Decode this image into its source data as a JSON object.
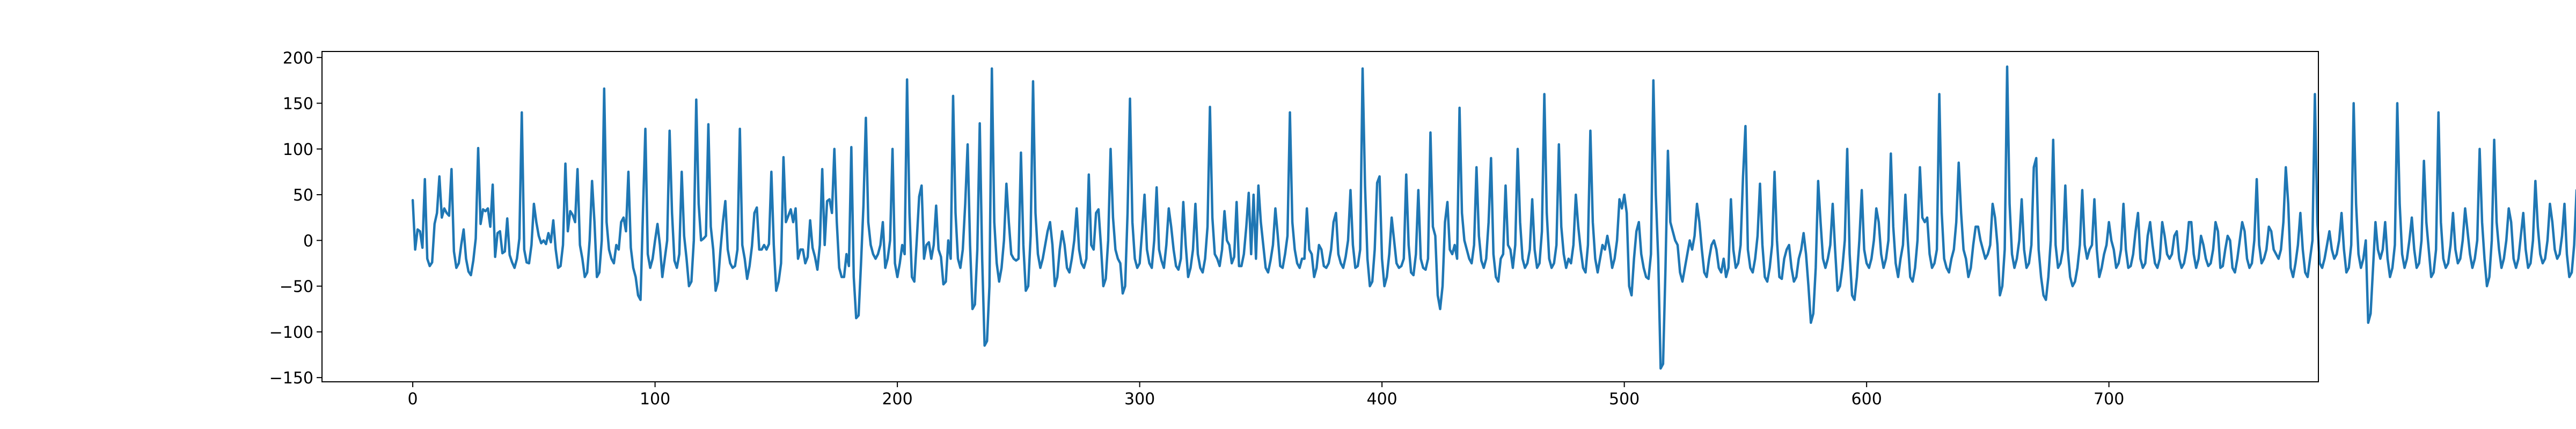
{
  "chart_data": {
    "type": "line",
    "title": "",
    "xlabel": "",
    "ylabel": "",
    "xlim": [
      -37.45,
      786.45
    ],
    "ylim": [
      -154.6,
      206.6
    ],
    "x_ticks": [
      0,
      100,
      200,
      300,
      400,
      500,
      600,
      700
    ],
    "y_ticks": [
      -150,
      -100,
      -50,
      0,
      50,
      100,
      150,
      200
    ],
    "grid": false,
    "legend": "none",
    "series_color": "#1f77b4",
    "series": [
      {
        "x_start": 0,
        "x_step": 1,
        "values": [
          44,
          -10,
          12,
          10,
          -8,
          67,
          -20,
          -28,
          -24,
          18,
          30,
          70,
          25,
          35,
          30,
          27,
          78,
          -12,
          -30,
          -25,
          -5,
          12,
          -20,
          -34,
          -38,
          -22,
          2,
          101,
          18,
          34,
          32,
          35,
          15,
          61,
          -18,
          8,
          10,
          -14,
          -12,
          24,
          -16,
          -24,
          -30,
          -20,
          2,
          140,
          -10,
          -24,
          -25,
          -5,
          40,
          20,
          5,
          -3,
          0,
          -4,
          8,
          -2,
          22,
          -10,
          -30,
          -28,
          -5,
          84,
          10,
          32,
          28,
          20,
          78,
          -5,
          -20,
          -40,
          -35,
          0,
          65,
          20,
          -40,
          -35,
          0,
          166,
          20,
          -10,
          -20,
          -25,
          -5,
          -10,
          20,
          25,
          10,
          75,
          -8,
          -30,
          -40,
          -60,
          -65,
          30,
          122,
          -15,
          -30,
          -20,
          0,
          18,
          -5,
          -40,
          -20,
          0,
          120,
          30,
          -22,
          -30,
          -15,
          75,
          5,
          -20,
          -50,
          -45,
          0,
          154,
          40,
          0,
          2,
          5,
          127,
          15,
          -10,
          -55,
          -45,
          -10,
          20,
          43,
          -10,
          -25,
          -30,
          -28,
          -10,
          122,
          -5,
          -20,
          -42,
          -28,
          -6,
          30,
          36,
          -10,
          -10,
          -5,
          -10,
          -4,
          75,
          -5,
          -55,
          -45,
          -25,
          91,
          20,
          27,
          34,
          20,
          35,
          -20,
          -10,
          -10,
          -25,
          -18,
          22,
          -8,
          -18,
          -32,
          -5,
          78,
          -5,
          43,
          45,
          30,
          100,
          20,
          -30,
          -40,
          -40,
          -15,
          -28,
          102,
          -40,
          -85,
          -82,
          -25,
          38,
          134,
          20,
          -5,
          -15,
          -20,
          -15,
          -5,
          20,
          -30,
          -20,
          0,
          100,
          -25,
          -40,
          -25,
          -5,
          -15,
          176,
          30,
          -40,
          -45,
          0,
          48,
          60,
          -20,
          -5,
          -2,
          -20,
          -5,
          38,
          -10,
          -18,
          -48,
          -45,
          0,
          -20,
          158,
          30,
          -20,
          -30,
          -10,
          40,
          105,
          -5,
          -75,
          -70,
          -10,
          128,
          -20,
          -115,
          -110,
          -50,
          188,
          20,
          -25,
          -45,
          -30,
          0,
          62,
          20,
          -15,
          -20,
          -22,
          -20,
          96,
          -5,
          -55,
          -50,
          5,
          174,
          30,
          -15,
          -30,
          -20,
          -5,
          10,
          20,
          -5,
          -50,
          -40,
          -10,
          10,
          -5,
          -30,
          -35,
          -20,
          0,
          35,
          -10,
          -25,
          -30,
          -20,
          72,
          -5,
          -10,
          30,
          34,
          -5,
          -50,
          -42,
          0,
          100,
          25,
          -10,
          -20,
          -25,
          -58,
          -50,
          30,
          155,
          20,
          -20,
          -30,
          -25,
          10,
          50,
          -10,
          -25,
          -30,
          0,
          58,
          -10,
          -22,
          -30,
          -5,
          35,
          15,
          -10,
          -28,
          -32,
          -20,
          42,
          -5,
          -40,
          -30,
          -10,
          40,
          -15,
          -30,
          -35,
          -20,
          15,
          146,
          25,
          -15,
          -20,
          -28,
          -10,
          32,
          0,
          -5,
          -25,
          -18,
          42,
          -28,
          -28,
          -15,
          15,
          52,
          -15,
          50,
          -20,
          60,
          20,
          -5,
          -30,
          -35,
          -22,
          -5,
          35,
          5,
          -28,
          -30,
          -15,
          5,
          140,
          20,
          -10,
          -25,
          -30,
          -20,
          -20,
          35,
          -10,
          -15,
          -40,
          -30,
          -5,
          -10,
          -28,
          -30,
          -25,
          -10,
          20,
          30,
          -15,
          -25,
          -30,
          -18,
          0,
          55,
          -5,
          -30,
          -28,
          -10,
          188,
          60,
          -20,
          -50,
          -45,
          -10,
          63,
          70,
          -20,
          -50,
          -40,
          -15,
          25,
          0,
          -25,
          -30,
          -28,
          -20,
          72,
          -5,
          -35,
          -38,
          -15,
          55,
          -20,
          -30,
          -32,
          -20,
          118,
          15,
          5,
          -60,
          -75,
          -50,
          20,
          42,
          -10,
          -15,
          -5,
          -20,
          145,
          30,
          0,
          -10,
          -20,
          -25,
          -5,
          80,
          5,
          -22,
          -30,
          -20,
          20,
          90,
          -15,
          -40,
          -45,
          -20,
          -15,
          60,
          -5,
          -10,
          -30,
          -5,
          100,
          20,
          -20,
          -30,
          -25,
          -10,
          45,
          -10,
          -30,
          -25,
          10,
          160,
          30,
          -20,
          -30,
          -25,
          -5,
          105,
          15,
          -15,
          -30,
          -20,
          -25,
          -5,
          50,
          15,
          -10,
          -30,
          -35,
          -5,
          120,
          20,
          -20,
          -35,
          -20,
          -5,
          -10,
          5,
          -10,
          -30,
          -20,
          0,
          45,
          35,
          50,
          30,
          -50,
          -60,
          -20,
          10,
          20,
          -15,
          -30,
          -40,
          -42,
          -15,
          175,
          50,
          -20,
          -140,
          -135,
          -30,
          98,
          20,
          10,
          0,
          -5,
          -35,
          -45,
          -30,
          -15,
          0,
          -10,
          5,
          40,
          20,
          -10,
          -35,
          -40,
          -20,
          -5,
          0,
          -10,
          -30,
          -35,
          -20,
          -40,
          -30,
          45,
          -10,
          -30,
          -25,
          -5,
          70,
          125,
          -10,
          -30,
          -35,
          -20,
          5,
          62,
          -5,
          -40,
          -45,
          -30,
          -5,
          75,
          0,
          -40,
          -42,
          -20,
          -10,
          -5,
          -30,
          -45,
          -40,
          -20,
          -10,
          8,
          -15,
          -50,
          -90,
          -80,
          -30,
          65,
          20,
          -20,
          -30,
          -20,
          -5,
          40,
          -10,
          -55,
          -50,
          -30,
          0,
          100,
          -15,
          -60,
          -65,
          -40,
          0,
          55,
          -10,
          -25,
          -30,
          -20,
          0,
          35,
          20,
          -15,
          -30,
          -20,
          0,
          95,
          15,
          -25,
          -40,
          -20,
          -5,
          50,
          0,
          -40,
          -45,
          -30,
          0,
          80,
          25,
          20,
          25,
          -15,
          -30,
          -25,
          -10,
          160,
          30,
          -20,
          -30,
          -35,
          -20,
          -10,
          20,
          85,
          30,
          -10,
          -20,
          -40,
          -30,
          -5,
          15,
          15,
          0,
          -10,
          -20,
          -15,
          -5,
          40,
          25,
          -5,
          -60,
          -50,
          -10,
          190,
          40,
          -15,
          -30,
          -20,
          0,
          45,
          -10,
          -30,
          -25,
          -5,
          80,
          90,
          -10,
          -40,
          -60,
          -65,
          -40,
          0,
          110,
          -5,
          -30,
          -25,
          -10,
          60,
          -10,
          -40,
          -50,
          -45,
          -30,
          -5,
          55,
          -5,
          -20,
          -10,
          -5,
          45,
          -10,
          -40,
          -30,
          -15,
          -5,
          20,
          0,
          -10,
          -30,
          -25,
          -10,
          40,
          -10,
          -30,
          -28,
          -15,
          10,
          30,
          -20,
          -30,
          -25,
          5,
          20,
          -5,
          -25,
          -30,
          -20,
          20,
          5,
          -15,
          -20,
          -15,
          5,
          10,
          -20,
          -30,
          -25,
          -10,
          20,
          20,
          -15,
          -30,
          -20,
          5,
          -5,
          -20,
          -28,
          -25,
          -10,
          20,
          10,
          -30,
          -28,
          -10,
          5,
          0,
          -30,
          -35,
          -20,
          0,
          20,
          10,
          -20,
          -30,
          -25,
          0,
          67,
          -5,
          -25,
          -20,
          -10,
          15,
          10,
          -10,
          -15,
          -20,
          -10,
          20,
          80,
          40,
          -30,
          -40,
          -25,
          -5,
          30,
          -10,
          -35,
          -40,
          -20,
          0,
          160,
          20,
          -25,
          -30,
          -20,
          -5,
          10,
          -10,
          -20,
          -15,
          0,
          30,
          -10,
          -35,
          -30,
          -5,
          150,
          40,
          -15,
          -30,
          -20,
          0,
          -90,
          -80,
          -30,
          20,
          -10,
          -20,
          -10,
          20,
          -20,
          -40,
          -30,
          -5,
          150,
          40,
          -15,
          -30,
          -20,
          0,
          25,
          -10,
          -30,
          -25,
          0,
          87,
          20,
          -10,
          -40,
          -35,
          -10,
          140,
          20,
          -20,
          -30,
          -25,
          -5,
          30,
          -10,
          -25,
          -20,
          0,
          35,
          10,
          -15,
          -30,
          -20,
          0,
          100,
          20,
          -20,
          -50,
          -40,
          0,
          110,
          20,
          -10,
          -30,
          -20,
          0,
          35,
          20,
          -20,
          -30,
          -20,
          5,
          30,
          -10,
          -30,
          -25,
          0,
          65,
          15,
          -15,
          -25,
          -20,
          0,
          40,
          20,
          -10,
          -20,
          -15,
          5,
          40,
          -15,
          -40,
          -35,
          -5,
          55,
          0,
          -25,
          -20,
          5,
          15,
          -10,
          -30,
          -25,
          5,
          68,
          10,
          -20,
          -30,
          -20,
          10,
          75,
          -20,
          -55,
          -40,
          0,
          172,
          20,
          -10,
          -25,
          -20,
          0,
          35,
          -10,
          -30,
          -25,
          0,
          55,
          -10,
          -30,
          -40,
          -20,
          0,
          35,
          -10,
          -25,
          -30,
          -20,
          15,
          30,
          -15,
          -30,
          -25,
          0,
          60,
          -10,
          -25,
          -20,
          0,
          38,
          -10,
          -20,
          -30,
          -20,
          0,
          30,
          -5,
          -40,
          -25,
          10,
          20,
          -10,
          -30,
          -40,
          -20,
          0,
          85,
          20,
          -10,
          -20,
          -15,
          0,
          30,
          5,
          -15,
          -25,
          -20,
          5,
          155,
          20,
          -5,
          -45,
          -40,
          -10,
          32,
          15,
          -15,
          -30,
          -25,
          0,
          40,
          -10,
          -55,
          -50,
          -10,
          45,
          -10,
          -25,
          -20,
          0,
          30,
          20,
          -5,
          -25,
          -30,
          -20,
          5,
          28,
          -15,
          -20,
          -5,
          40,
          20,
          -20,
          -30,
          -15,
          0,
          35,
          -5,
          -25,
          -20,
          0,
          40,
          -10,
          -20,
          -35,
          -40,
          -20,
          12,
          40,
          10,
          -20,
          -30,
          -15,
          100,
          20,
          -20,
          -30,
          -20,
          0,
          36,
          -10,
          -30,
          -25,
          5,
          147,
          30,
          -50,
          -105,
          -80,
          -20,
          25,
          -10,
          -35,
          -30,
          0,
          36,
          10,
          -10,
          -20,
          -25,
          -10,
          140,
          20,
          -10,
          -20,
          -10,
          10,
          20,
          -20,
          -30,
          -25,
          -5,
          20,
          -5,
          -15,
          -20,
          -10,
          40,
          -5,
          -30,
          -25,
          -5,
          32,
          -10,
          -50,
          -40,
          -5,
          -5,
          20,
          -10,
          -30,
          -20,
          5,
          50,
          -10,
          -40,
          -30,
          -5,
          80,
          40,
          -20,
          -30,
          -25,
          0,
          35,
          5,
          -15,
          -20,
          -10,
          10,
          20,
          -20,
          -25,
          -15,
          0,
          20,
          -10,
          -30,
          -20,
          0,
          30,
          10,
          -20,
          -25,
          -15,
          0,
          35,
          15,
          -15,
          -20,
          -15,
          0,
          30,
          -5,
          -45,
          -40,
          -10,
          10,
          15,
          -10,
          -15,
          -10,
          5,
          35,
          -10,
          -40,
          -30,
          -5,
          100,
          30,
          -20,
          -30,
          -25,
          -5,
          30,
          10,
          -25,
          -30,
          -20,
          0,
          25,
          -10,
          -25,
          -20,
          0,
          35,
          15,
          -15,
          -20,
          -15,
          0,
          40,
          10,
          -20,
          -30,
          -25,
          -10,
          130,
          30,
          -20,
          -25,
          -15,
          5,
          35,
          -10,
          -20,
          -30,
          -20,
          0,
          28,
          15,
          -30,
          -25,
          0,
          40,
          -10,
          -20,
          -25,
          -20,
          0,
          25,
          10,
          -15,
          -30,
          -20,
          0,
          20,
          -10,
          -25,
          -20,
          0,
          45,
          -20,
          -30,
          -25,
          -10,
          30,
          -10,
          -25,
          -35,
          -20,
          85,
          20,
          -30,
          -25,
          10,
          30
        ]
      }
    ]
  }
}
